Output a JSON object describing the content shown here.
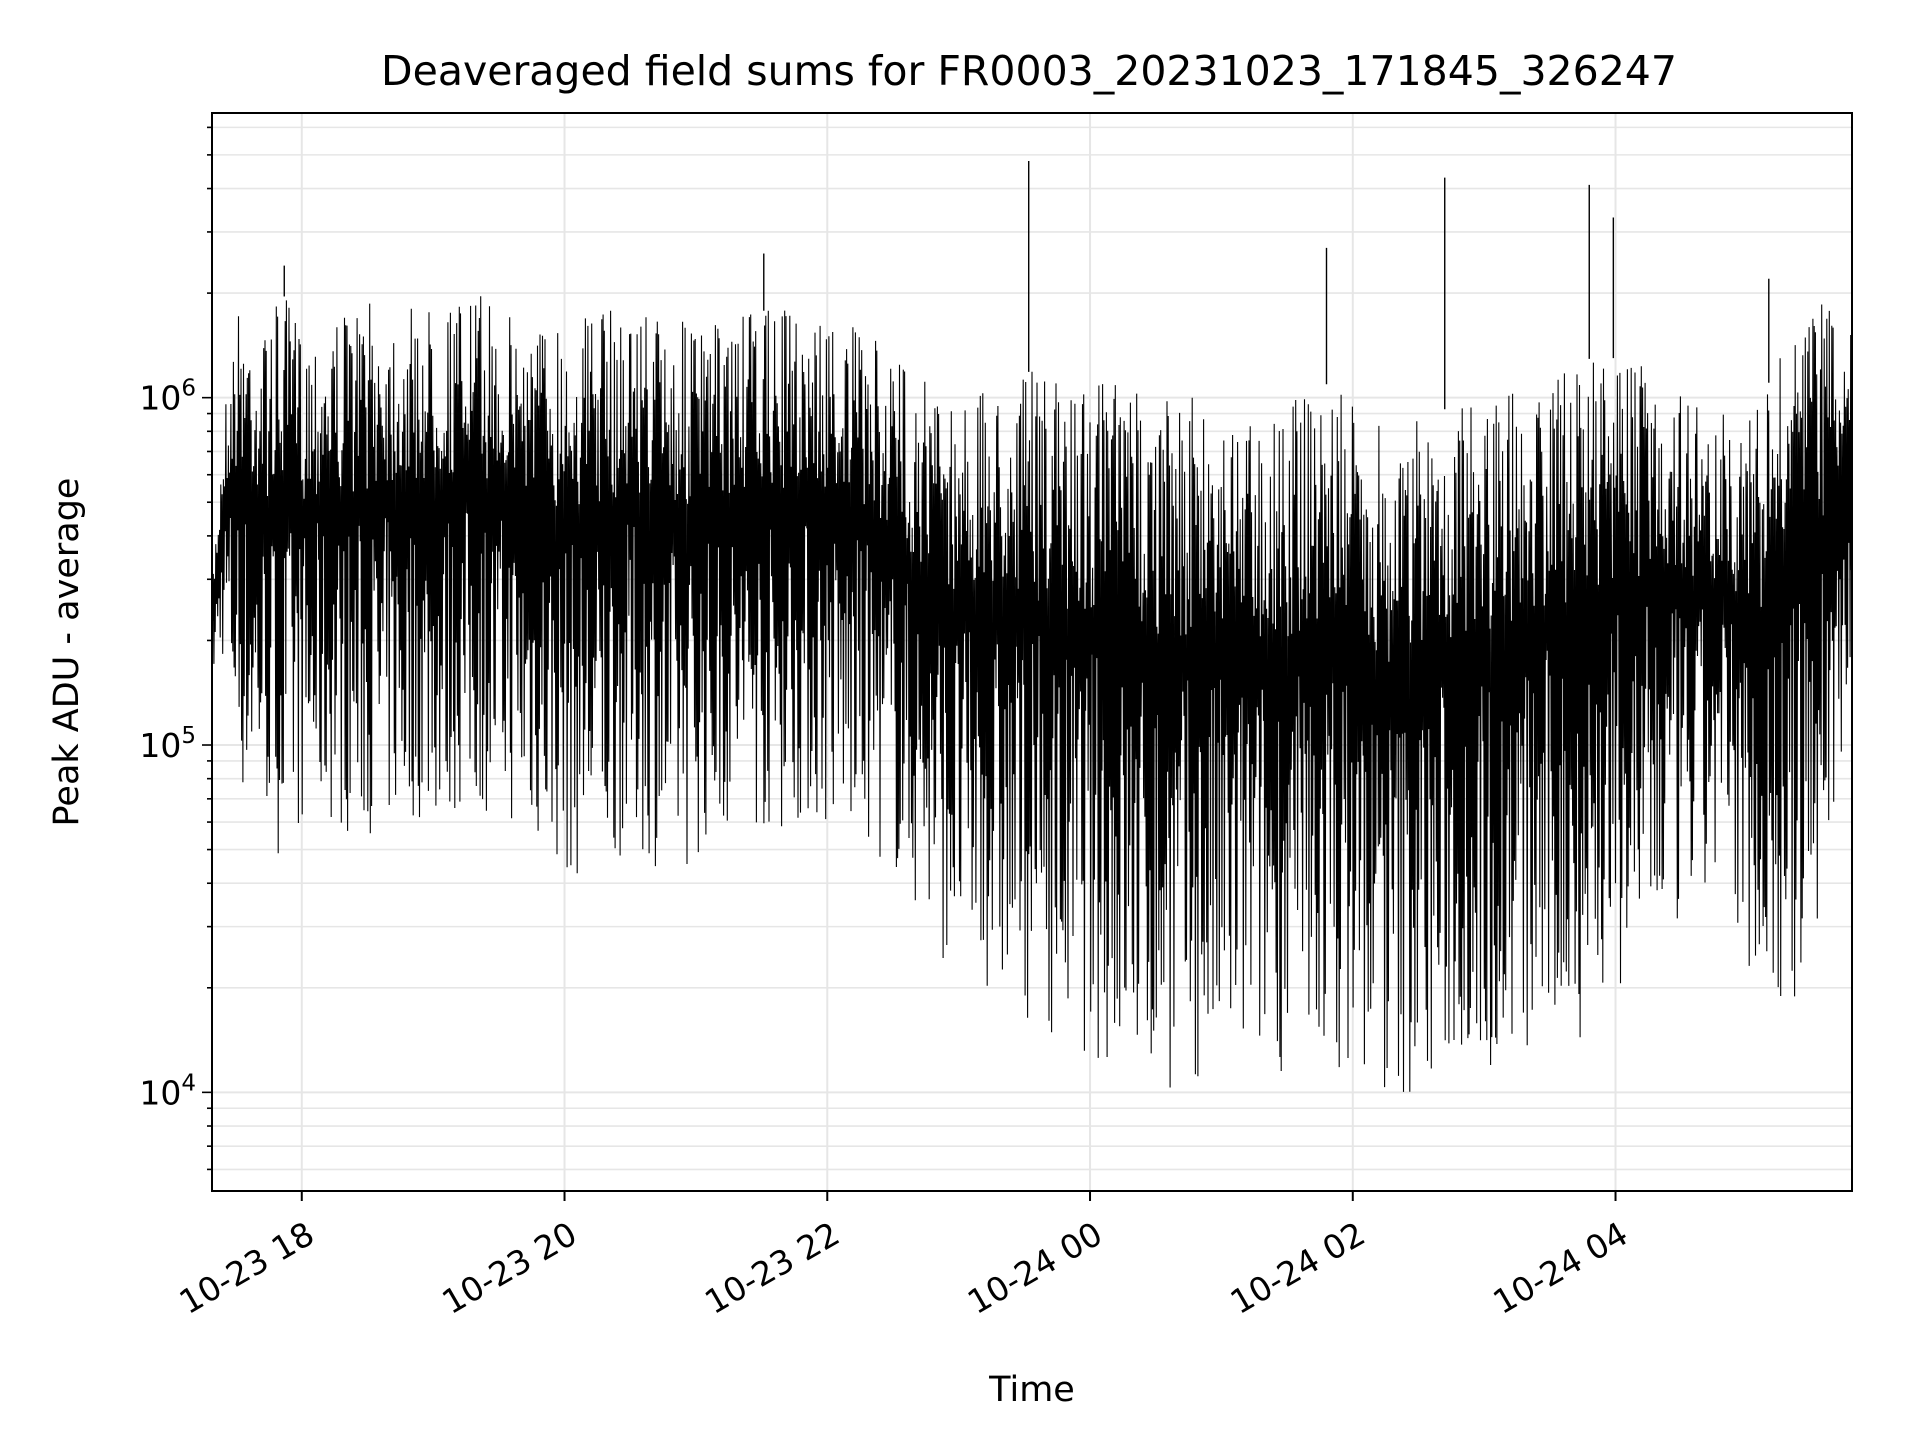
{
  "chart_data": {
    "type": "line",
    "title": "Deaveraged field sums for FR0003_20231023_171845_326247",
    "xlabel": "Time",
    "ylabel": "Peak ADU - average",
    "yscale": "log",
    "ylim": [
      5200,
      6600000
    ],
    "xlim": [
      "2023-10-23 17:19",
      "2023-10-24 05:48"
    ],
    "grid": true,
    "line_color": "#000000",
    "grid_color": "#e6e6e6",
    "x_ticks": [
      "10-23 18",
      "10-23 20",
      "10-23 22",
      "10-24 00",
      "10-24 02",
      "10-24 04"
    ],
    "y_ticks": [
      {
        "base": "10",
        "exp": "4",
        "value": 10000
      },
      {
        "base": "10",
        "exp": "5",
        "value": 100000
      },
      {
        "base": "10",
        "exp": "6",
        "value": 1000000
      }
    ],
    "series": [
      {
        "x": [
          "2023-10-23 17:19",
          "2023-10-23 17:25",
          "2023-10-23 17:32",
          "2023-10-23 17:41",
          "2023-10-23 17:51",
          "2023-10-23 18:01",
          "2023-10-23 18:11",
          "2023-10-23 18:22",
          "2023-10-23 18:34",
          "2023-10-23 18:49",
          "2023-10-23 19:04",
          "2023-10-23 19:19",
          "2023-10-23 19:34",
          "2023-10-23 19:49",
          "2023-10-23 20:04",
          "2023-10-23 20:19",
          "2023-10-23 20:34",
          "2023-10-23 20:49",
          "2023-10-23 21:04",
          "2023-10-23 21:19",
          "2023-10-23 21:34",
          "2023-10-23 21:49",
          "2023-10-23 22:04",
          "2023-10-23 22:19",
          "2023-10-23 22:34",
          "2023-10-23 22:49",
          "2023-10-23 23:04",
          "2023-10-23 23:19",
          "2023-10-23 23:34",
          "2023-10-23 23:49",
          "2023-10-24 00:04",
          "2023-10-24 00:19",
          "2023-10-24 00:34",
          "2023-10-24 00:49",
          "2023-10-24 01:04",
          "2023-10-24 01:19",
          "2023-10-24 01:34",
          "2023-10-24 01:49",
          "2023-10-24 02:04",
          "2023-10-24 02:19",
          "2023-10-24 02:34",
          "2023-10-24 02:49",
          "2023-10-24 03:04",
          "2023-10-24 03:19",
          "2023-10-24 03:34",
          "2023-10-24 03:49",
          "2023-10-24 04:04",
          "2023-10-24 04:19",
          "2023-10-24 04:34",
          "2023-10-24 04:49",
          "2023-10-24 05:04",
          "2023-10-24 05:19",
          "2023-10-24 05:34",
          "2023-10-24 05:48"
        ],
        "upper": [
          300000,
          1000000,
          2000000,
          1500000,
          2000000,
          1600000,
          1700000,
          1800000,
          1900000,
          1800000,
          1900000,
          2000000,
          1800000,
          1700000,
          1800000,
          1800000,
          1900000,
          1700000,
          1600000,
          1700000,
          1800000,
          1800000,
          1700000,
          1500000,
          1300000,
          1100000,
          1000000,
          1100000,
          1200000,
          1100000,
          1200000,
          1100000,
          1000000,
          1000000,
          1000000,
          900000,
          1000000,
          1100000,
          900000,
          800000,
          900000,
          950000,
          1000000,
          1100000,
          1200000,
          1300000,
          1300000,
          1200000,
          1000000,
          900000,
          900000,
          1500000,
          1900000,
          1800000
        ],
        "lower": [
          150000,
          180000,
          70000,
          70000,
          45000,
          60000,
          60000,
          55000,
          55000,
          60000,
          60000,
          65000,
          60000,
          50000,
          40000,
          45000,
          50000,
          40000,
          50000,
          60000,
          55000,
          60000,
          55000,
          50000,
          40000,
          25000,
          22000,
          18000,
          16000,
          14000,
          12000,
          11000,
          10000,
          10000,
          11000,
          12000,
          11000,
          12000,
          11000,
          9000,
          10000,
          12000,
          11000,
          12000,
          13000,
          15000,
          20000,
          25000,
          30000,
          40000,
          20000,
          15000,
          30000,
          150000
        ]
      }
    ],
    "spikes": [
      {
        "x": "2023-10-23 23:32",
        "y": 4800000
      },
      {
        "x": "2023-10-24 01:48",
        "y": 2700000
      },
      {
        "x": "2023-10-24 02:42",
        "y": 4300000
      },
      {
        "x": "2023-10-24 03:48",
        "y": 4100000
      },
      {
        "x": "2023-10-24 03:59",
        "y": 3300000
      },
      {
        "x": "2023-10-23 21:31",
        "y": 2600000
      },
      {
        "x": "2023-10-23 17:52",
        "y": 2400000
      },
      {
        "x": "2023-10-24 05:10",
        "y": 2200000
      }
    ]
  }
}
